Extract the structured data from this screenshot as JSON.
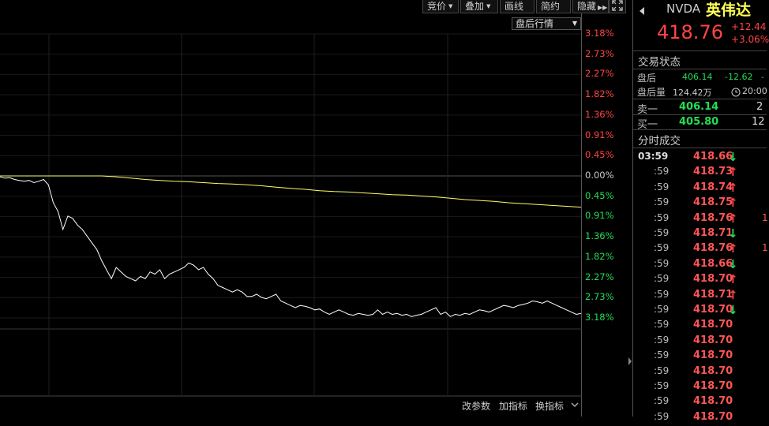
{
  "toolbar": {
    "bid_label": "竞价",
    "overlay_label": "叠加",
    "draw_label": "画线",
    "simple_label": "简约",
    "hide_label": "隐藏"
  },
  "dropdown": {
    "selected": "盘后行情"
  },
  "bottom_buttons": {
    "params": "改参数",
    "add_indicator": "加指标",
    "change_indicator": "换指标"
  },
  "chart_data": {
    "type": "line",
    "y_labels": [
      "3.18%",
      "2.73%",
      "2.27%",
      "1.82%",
      "1.36%",
      "0.91%",
      "0.45%",
      "0.00%",
      "0.45%",
      "0.91%",
      "1.36%",
      "1.82%",
      "2.27%",
      "2.73%",
      "3.18%"
    ],
    "ylim_percent": [
      -3.18,
      3.18
    ],
    "series": [
      {
        "color": "#ffffff",
        "values_percent": [
          -0.02,
          -0.05,
          -0.04,
          -0.08,
          -0.1,
          -0.12,
          -0.1,
          -0.15,
          -0.12,
          -0.08,
          -0.2,
          -0.6,
          -0.8,
          -1.2,
          -0.9,
          -0.95,
          -1.1,
          -1.2,
          -1.35,
          -1.5,
          -1.65,
          -1.9,
          -2.1,
          -2.3,
          -2.05,
          -2.15,
          -2.25,
          -2.3,
          -2.35,
          -2.25,
          -2.3,
          -2.15,
          -2.2,
          -2.1,
          -2.3,
          -2.2,
          -2.15,
          -2.1,
          -2.05,
          -1.95,
          -2.0,
          -2.1,
          -2.05,
          -2.2,
          -2.3,
          -2.45,
          -2.5,
          -2.55,
          -2.6,
          -2.55,
          -2.6,
          -2.7,
          -2.7,
          -2.65,
          -2.72,
          -2.75,
          -2.7,
          -2.65,
          -2.8,
          -2.85,
          -2.9,
          -2.95,
          -2.9,
          -2.92,
          -2.95,
          -3.0,
          -2.98,
          -3.05,
          -3.1,
          -3.05,
          -3.0,
          -3.05,
          -3.1,
          -3.12,
          -3.08,
          -3.1,
          -3.12,
          -3.1,
          -3.0,
          -3.1,
          -3.05,
          -3.1,
          -3.08,
          -3.12,
          -3.1,
          -3.15,
          -3.12,
          -3.1,
          -3.05,
          -3.0,
          -2.95,
          -3.1,
          -3.05,
          -3.15,
          -3.1,
          -3.12,
          -3.08,
          -3.1,
          -3.05,
          -3.0,
          -3.02,
          -3.05,
          -3.0,
          -2.95,
          -2.9,
          -2.92,
          -2.95,
          -2.9,
          -2.88,
          -2.85,
          -2.8,
          -2.82,
          -2.85,
          -2.8,
          -2.85,
          -2.9,
          -2.95,
          -3.0,
          -3.05,
          -3.1,
          -3.08
        ]
      },
      {
        "color": "#ffff66",
        "values_percent": [
          0,
          0,
          0,
          0,
          0,
          0,
          0,
          0,
          -0.02,
          -0.05,
          -0.08,
          -0.1,
          -0.12,
          -0.13,
          -0.15,
          -0.17,
          -0.18,
          -0.2,
          -0.22,
          -0.25,
          -0.28,
          -0.3,
          -0.33,
          -0.35,
          -0.36,
          -0.38,
          -0.4,
          -0.42,
          -0.43,
          -0.45,
          -0.47,
          -0.5,
          -0.53,
          -0.55,
          -0.57,
          -0.6,
          -0.62,
          -0.64,
          -0.66,
          -0.68,
          -0.7
        ]
      }
    ]
  },
  "quote": {
    "symbol": "NVDA",
    "name": "英伟达",
    "price": "418.76",
    "change": "+12.44",
    "change_pct": "+3.06%"
  },
  "trade_status": {
    "title": "交易状态",
    "after_hours_label": "盘后",
    "after_hours_price": "406.14",
    "after_hours_change": "-12.62",
    "after_hours_pct": "-",
    "after_vol_label": "盘后量",
    "after_vol_value": "124.42万",
    "after_time": "20:00"
  },
  "order_book": {
    "sell1_label": "卖一",
    "sell1_price": "406.14",
    "sell1_vol": "2",
    "buy1_label": "买一",
    "buy1_price": "405.80",
    "buy1_vol": "12"
  },
  "ticks": {
    "title": "分时成交",
    "rows": [
      {
        "time": "03:59",
        "price": "418.66",
        "dir": "down",
        "vol": ""
      },
      {
        "time": ":59",
        "price": "418.73",
        "dir": "up",
        "vol": ""
      },
      {
        "time": ":59",
        "price": "418.74",
        "dir": "up",
        "vol": ""
      },
      {
        "time": ":59",
        "price": "418.75",
        "dir": "up",
        "vol": ""
      },
      {
        "time": ":59",
        "price": "418.76",
        "dir": "up",
        "vol": "1"
      },
      {
        "time": ":59",
        "price": "418.71",
        "dir": "down",
        "vol": ""
      },
      {
        "time": ":59",
        "price": "418.76",
        "dir": "up",
        "vol": "1"
      },
      {
        "time": ":59",
        "price": "418.66",
        "dir": "down",
        "vol": ""
      },
      {
        "time": ":59",
        "price": "418.70",
        "dir": "up",
        "vol": ""
      },
      {
        "time": ":59",
        "price": "418.71",
        "dir": "up",
        "vol": ""
      },
      {
        "time": ":59",
        "price": "418.70",
        "dir": "down",
        "vol": ""
      },
      {
        "time": ":59",
        "price": "418.70",
        "dir": "",
        "vol": ""
      },
      {
        "time": ":59",
        "price": "418.70",
        "dir": "",
        "vol": ""
      },
      {
        "time": ":59",
        "price": "418.70",
        "dir": "",
        "vol": ""
      },
      {
        "time": ":59",
        "price": "418.70",
        "dir": "",
        "vol": ""
      },
      {
        "time": ":59",
        "price": "418.70",
        "dir": "",
        "vol": ""
      },
      {
        "time": ":59",
        "price": "418.70",
        "dir": "",
        "vol": ""
      },
      {
        "time": ":59",
        "price": "418.70",
        "dir": "",
        "vol": ""
      }
    ]
  },
  "colors": {
    "up": "#ff4444",
    "down": "#22dd55",
    "neutral": "#cccccc"
  }
}
